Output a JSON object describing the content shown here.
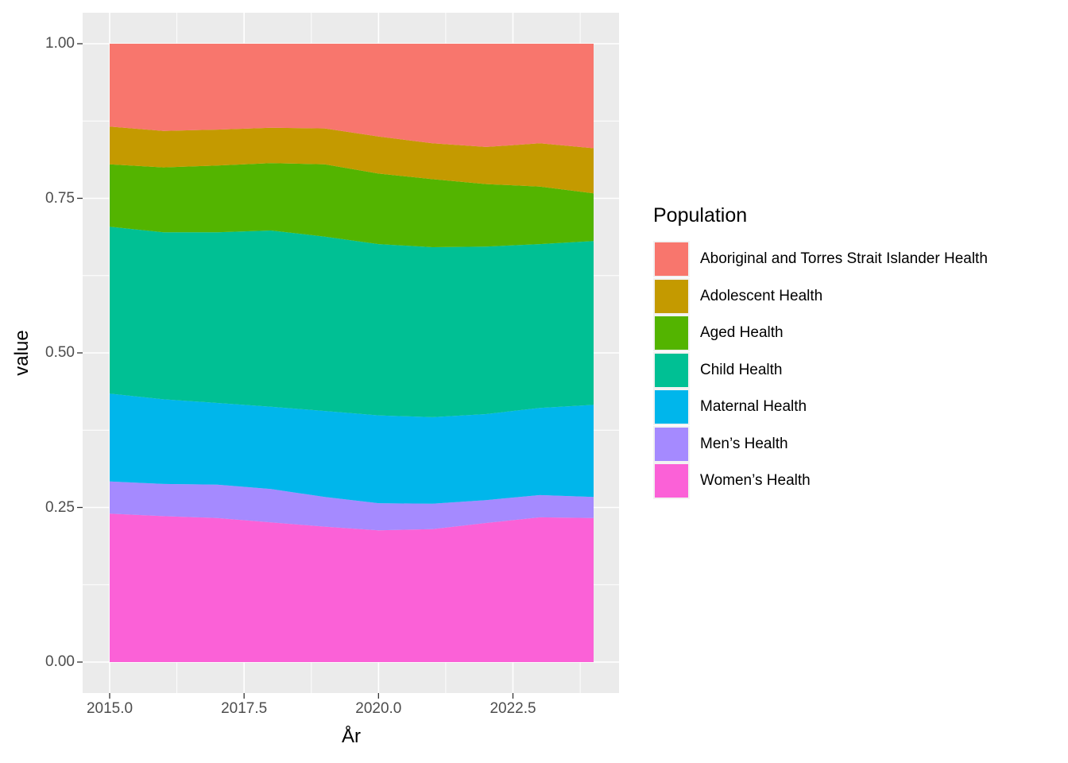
{
  "figure": {
    "background": "#FFFFFF",
    "panel_background": "#EBEBEB",
    "gridline_color": "#FFFFFF",
    "tick_mark_color": "#333333",
    "axis_text_color": "#4D4D4D",
    "axis_title_color": "#000000"
  },
  "axes": {
    "x": {
      "title": "År",
      "ticks": [
        {
          "value": 2015.0,
          "label": "2015.0"
        },
        {
          "value": 2017.5,
          "label": "2017.5"
        },
        {
          "value": 2020.0,
          "label": "2020.0"
        },
        {
          "value": 2022.5,
          "label": "2022.5"
        }
      ],
      "minor": [
        2016.25,
        2018.75,
        2021.25,
        2023.75
      ],
      "range": [
        2015,
        2024
      ]
    },
    "y": {
      "title": "value",
      "ticks": [
        {
          "value": 0.0,
          "label": "0.00"
        },
        {
          "value": 0.25,
          "label": "0.25"
        },
        {
          "value": 0.5,
          "label": "0.50"
        },
        {
          "value": 0.75,
          "label": "0.75"
        },
        {
          "value": 1.0,
          "label": "1.00"
        }
      ],
      "minor": [
        0.125,
        0.375,
        0.625,
        0.875
      ],
      "range": [
        0,
        1
      ]
    }
  },
  "legend": {
    "title": "Population",
    "entries": [
      {
        "label": "Aboriginal and Torres Strait Islander Health",
        "color": "#F8766D"
      },
      {
        "label": "Adolescent Health",
        "color": "#C49A00"
      },
      {
        "label": "Aged Health",
        "color": "#53B400"
      },
      {
        "label": "Child Health",
        "color": "#00C094"
      },
      {
        "label": "Maternal Health",
        "color": "#00B6EB"
      },
      {
        "label": "Men’s Health",
        "color": "#A58AFF"
      },
      {
        "label": "Women’s Health",
        "color": "#FB61D7"
      }
    ]
  },
  "chart_data": {
    "type": "area",
    "stacked": true,
    "normalized": true,
    "title": "",
    "xlabel": "År",
    "ylabel": "value",
    "xlim": [
      2015,
      2024
    ],
    "ylim": [
      0,
      1
    ],
    "grid": true,
    "legend_position": "right",
    "x": [
      2015,
      2016,
      2017,
      2018,
      2019,
      2020,
      2021,
      2022,
      2023,
      2024
    ],
    "stack_order_bottom_to_top": [
      "Women’s Health",
      "Men’s Health",
      "Maternal Health",
      "Child Health",
      "Aged Health",
      "Adolescent Health",
      "Aboriginal and Torres Strait Islander Health"
    ],
    "series": [
      {
        "name": "Women’s Health",
        "color": "#FB61D7",
        "values": [
          0.24,
          0.236,
          0.233,
          0.226,
          0.219,
          0.213,
          0.215,
          0.225,
          0.234,
          0.233
        ]
      },
      {
        "name": "Men’s Health",
        "color": "#A58AFF",
        "values": [
          0.052,
          0.052,
          0.054,
          0.054,
          0.048,
          0.044,
          0.041,
          0.037,
          0.036,
          0.034
        ]
      },
      {
        "name": "Maternal Health",
        "color": "#00B6EB",
        "values": [
          0.142,
          0.137,
          0.132,
          0.133,
          0.139,
          0.142,
          0.14,
          0.139,
          0.141,
          0.149
        ]
      },
      {
        "name": "Child Health",
        "color": "#00C094",
        "values": [
          0.27,
          0.27,
          0.276,
          0.285,
          0.282,
          0.277,
          0.275,
          0.271,
          0.265,
          0.265
        ]
      },
      {
        "name": "Aged Health",
        "color": "#53B400",
        "values": [
          0.101,
          0.105,
          0.108,
          0.109,
          0.117,
          0.114,
          0.11,
          0.101,
          0.093,
          0.077
        ]
      },
      {
        "name": "Adolescent Health",
        "color": "#C49A00",
        "values": [
          0.061,
          0.059,
          0.058,
          0.057,
          0.058,
          0.06,
          0.058,
          0.06,
          0.07,
          0.073
        ]
      },
      {
        "name": "Aboriginal and Torres Strait Islander Health",
        "color": "#F8766D",
        "values": [
          0.134,
          0.141,
          0.139,
          0.136,
          0.137,
          0.15,
          0.161,
          0.167,
          0.161,
          0.169
        ]
      }
    ]
  }
}
